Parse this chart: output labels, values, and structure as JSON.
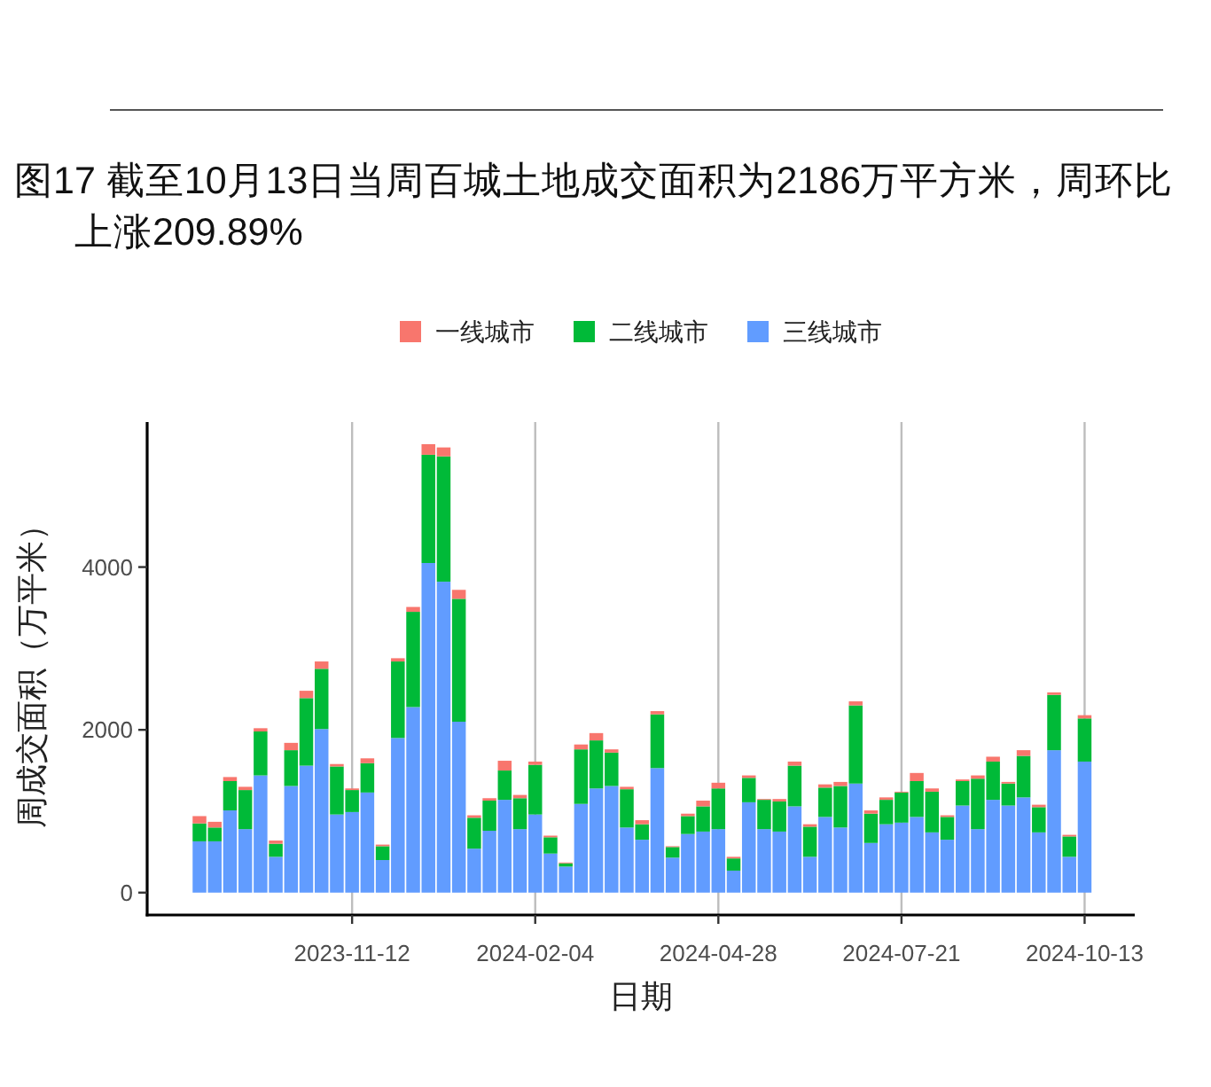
{
  "chart_data": {
    "type": "bar",
    "stacked": true,
    "title": "图17 截至10月13日当周百城土地成交面积为2186万平方米，周环比上涨209.89%",
    "xlabel": "日期",
    "ylabel": "周成交面积（万平米）",
    "x": [
      "2023-09-03",
      "2023-09-10",
      "2023-09-17",
      "2023-09-24",
      "2023-10-01",
      "2023-10-08",
      "2023-10-15",
      "2023-10-22",
      "2023-10-29",
      "2023-11-05",
      "2023-11-12",
      "2023-11-19",
      "2023-11-26",
      "2023-12-03",
      "2023-12-10",
      "2023-12-17",
      "2023-12-24",
      "2023-12-31",
      "2024-01-07",
      "2024-01-14",
      "2024-01-21",
      "2024-01-28",
      "2024-02-04",
      "2024-02-11",
      "2024-02-18",
      "2024-02-25",
      "2024-03-03",
      "2024-03-10",
      "2024-03-17",
      "2024-03-24",
      "2024-03-31",
      "2024-04-07",
      "2024-04-14",
      "2024-04-21",
      "2024-04-28",
      "2024-05-05",
      "2024-05-12",
      "2024-05-19",
      "2024-05-26",
      "2024-06-02",
      "2024-06-09",
      "2024-06-16",
      "2024-06-23",
      "2024-06-30",
      "2024-07-07",
      "2024-07-14",
      "2024-07-21",
      "2024-07-28",
      "2024-08-04",
      "2024-08-11",
      "2024-08-18",
      "2024-08-25",
      "2024-09-01",
      "2024-09-08",
      "2024-09-15",
      "2024-09-22",
      "2024-09-29",
      "2024-10-06",
      "2024-10-13"
    ],
    "series": [
      {
        "name": "三线城市",
        "color": "#619cff",
        "values": [
          630,
          630,
          1010,
          780,
          1440,
          440,
          1310,
          1560,
          2010,
          960,
          990,
          1230,
          400,
          1900,
          2280,
          4050,
          3820,
          2100,
          540,
          760,
          1140,
          780,
          960,
          480,
          320,
          1090,
          1280,
          1310,
          800,
          650,
          1530,
          430,
          720,
          750,
          780,
          270,
          1110,
          780,
          750,
          1060,
          440,
          930,
          800,
          1340,
          610,
          840,
          860,
          930,
          740,
          650,
          1070,
          780,
          1140,
          1070,
          1170,
          740,
          1750,
          440,
          1610
        ]
      },
      {
        "name": "二线城市",
        "color": "#00ba38",
        "values": [
          220,
          170,
          360,
          480,
          540,
          160,
          440,
          830,
          740,
          590,
          270,
          360,
          170,
          940,
          1170,
          1330,
          1540,
          1510,
          380,
          370,
          360,
          380,
          610,
          200,
          40,
          670,
          590,
          410,
          470,
          190,
          660,
          130,
          220,
          310,
          500,
          150,
          300,
          360,
          370,
          500,
          370,
          360,
          510,
          960,
          360,
          300,
          370,
          440,
          500,
          280,
          300,
          620,
          470,
          270,
          510,
          310,
          680,
          250,
          530
        ]
      },
      {
        "name": "一线城市",
        "color": "#f8766d",
        "values": [
          90,
          70,
          50,
          40,
          40,
          40,
          90,
          90,
          90,
          30,
          20,
          60,
          20,
          40,
          60,
          130,
          110,
          110,
          30,
          30,
          120,
          40,
          40,
          20,
          10,
          60,
          90,
          40,
          30,
          50,
          40,
          10,
          30,
          70,
          70,
          20,
          30,
          10,
          30,
          50,
          30,
          40,
          50,
          50,
          40,
          30,
          10,
          100,
          40,
          20,
          20,
          40,
          60,
          20,
          70,
          30,
          30,
          20,
          40
        ]
      }
    ],
    "xlim": [
      "2023-08-10",
      "2024-11-05"
    ],
    "xticks": [
      "2023-11-12",
      "2024-02-04",
      "2024-04-28",
      "2024-07-21",
      "2024-10-13"
    ],
    "ylim": [
      -275,
      5782
    ],
    "yticks": [
      0,
      2000,
      4000
    ],
    "grid": "x",
    "legend": "top"
  }
}
